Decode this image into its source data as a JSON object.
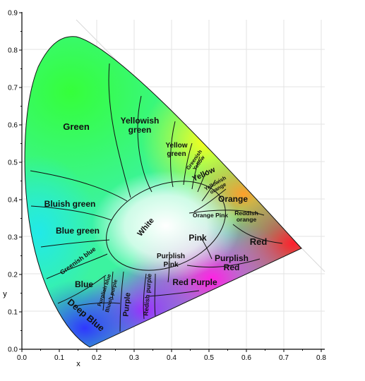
{
  "axes": {
    "x_title": "x",
    "y_title": "y",
    "x_ticks": [
      "0.0",
      "0.1",
      "0.2",
      "0.3",
      "0.4",
      "0.5",
      "0.6",
      "0.7",
      "0.8"
    ],
    "y_ticks": [
      "0.0",
      "0.1",
      "0.2",
      "0.3",
      "0.4",
      "0.5",
      "0.6",
      "0.7",
      "0.8",
      "0.9"
    ],
    "xlim": [
      0,
      0.8
    ],
    "ylim": [
      0,
      0.9
    ]
  },
  "regions": {
    "green": "Green",
    "yellowish_green_1": "Yellowish",
    "yellowish_green_2": "green",
    "yellow_green_1": "Yellow",
    "yellow_green_2": "green",
    "greenish_yellow_1": "Greenish",
    "greenish_yellow_2": "Yellow",
    "yellow": "Yellow",
    "yellowish_orange_1": "Yellowish",
    "yellowish_orange_2": "orange",
    "orange": "Orange",
    "orange_pink": "Orange Pink",
    "reddish_orange_1": "Reddish",
    "reddish_orange_2": "orange",
    "red": "Red",
    "bluish_green": "Bluish green",
    "blue_green": "Blue green",
    "white": "White",
    "pink": "Pink",
    "greenish_blue": "Greenish blue",
    "purplish_pink_1": "Purplish",
    "purplish_pink_2": "Pink",
    "purplish_red_1": "Purplish",
    "purplish_red_2": "Red",
    "blue": "Blue",
    "purplish_blue": "Purplish blue",
    "bluish_purple": "Bluish purple",
    "purple": "Purple",
    "reddish_purple": "Redish purple",
    "red_purple": "Red Purple",
    "deep_blue": "Deep Blue"
  },
  "colors": {
    "green": "#35ff3a",
    "yellow": "#f6ff1a",
    "orange": "#ff9f2a",
    "red": "#ff1f2e",
    "magenta": "#ff22e4",
    "purple": "#a12cff",
    "blue": "#2f37ff",
    "cyan": "#21e9e8",
    "white": "#ffffff"
  }
}
